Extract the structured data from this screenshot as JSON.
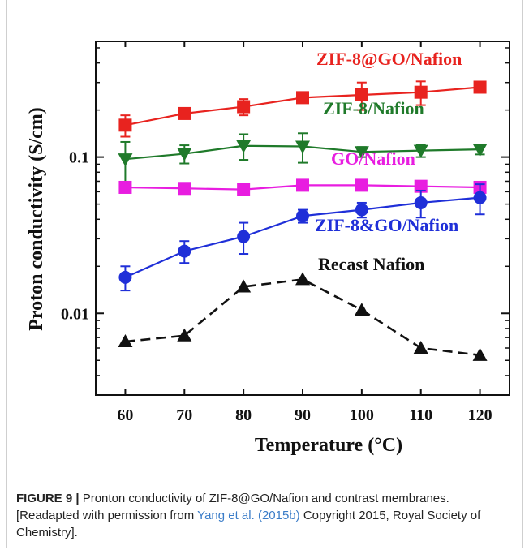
{
  "chart_data": {
    "type": "line",
    "xlabel": "Temperature (°C)",
    "ylabel": "Proton conductivity (S/cm)",
    "yscale": "log",
    "xlim": [
      55,
      125
    ],
    "ylim": [
      0.003,
      0.55
    ],
    "x": [
      60,
      70,
      80,
      90,
      100,
      110,
      120
    ],
    "x_ticks": [
      "60",
      "70",
      "80",
      "90",
      "100",
      "110",
      "120"
    ],
    "y_ticks": [
      {
        "value": 0.1,
        "label": "0.1"
      },
      {
        "value": 0.01,
        "label": "0.01"
      }
    ],
    "series": [
      {
        "name": "ZIF-8@GO/Nafion",
        "color": "#e8231f",
        "marker": "square",
        "dash": false,
        "values": [
          0.16,
          0.19,
          0.21,
          0.24,
          0.25,
          0.26,
          0.28
        ],
        "err": [
          0.025,
          0.013,
          0.025,
          0.018,
          0.05,
          0.045,
          0.02
        ]
      },
      {
        "name": "ZIF-8/Nafion",
        "color": "#1f7a2a",
        "marker": "triangle-down",
        "dash": false,
        "values": [
          0.097,
          0.105,
          0.118,
          0.117,
          0.108,
          0.11,
          0.112
        ],
        "err": [
          0.028,
          0.014,
          0.022,
          0.025,
          0.008,
          0.01,
          0.008
        ]
      },
      {
        "name": "GO/Nafion",
        "color": "#e81de0",
        "marker": "square",
        "dash": false,
        "values": [
          0.064,
          0.063,
          0.062,
          0.066,
          0.066,
          0.065,
          0.064
        ],
        "err": [
          0.003,
          0.004,
          0.003,
          0.004,
          0.004,
          0.003,
          0.003
        ]
      },
      {
        "name": "ZIF-8&GO/Nafion",
        "color": "#1f2fd8",
        "marker": "circle",
        "dash": false,
        "values": [
          0.017,
          0.025,
          0.031,
          0.042,
          0.046,
          0.051,
          0.055
        ],
        "err": [
          0.003,
          0.004,
          0.007,
          0.004,
          0.005,
          0.01,
          0.012
        ]
      },
      {
        "name": "Recast Nafion",
        "color": "#111111",
        "marker": "triangle-up",
        "dash": true,
        "values": [
          0.0066,
          0.0072,
          0.0148,
          0.0165,
          0.0105,
          0.006,
          0.0054
        ],
        "err": null
      }
    ]
  },
  "caption": {
    "label": "FIGURE 9 |",
    "text1": " Pronton conductivity of ZIF-8@GO/Nafion and contrast membranes. [Readapted with permission from ",
    "ref": "Yang et al. (2015b)",
    "text2": " Copyright 2015, Royal Society of Chemistry]."
  }
}
